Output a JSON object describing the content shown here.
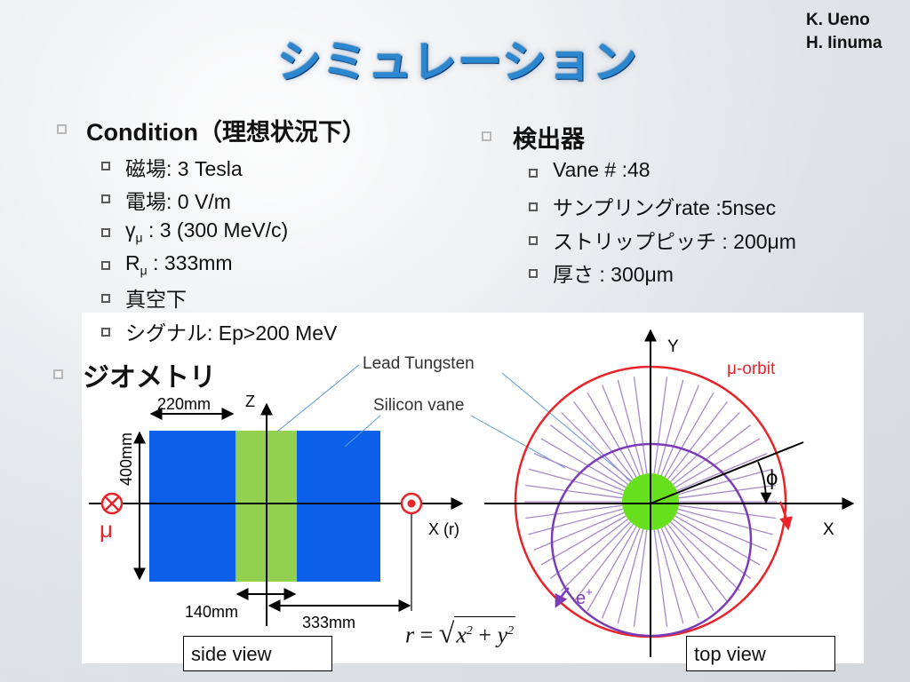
{
  "authors": [
    "K. Ueno",
    "H. Iinuma"
  ],
  "title": "シミュレーション",
  "condition": {
    "heading": "Condition",
    "heading_paren": "（理想状況下）",
    "items": [
      {
        "label": "磁場",
        "sep": ": ",
        "value": "3 Tesla"
      },
      {
        "label": "電場",
        "sep": ": ",
        "value": "0 V/m"
      },
      {
        "label": "γ",
        "sub": "μ",
        "value": " : 3 (300 MeV/c)"
      },
      {
        "label": "R",
        "sub": "μ",
        "value": " : 333mm"
      },
      {
        "label": "真空下",
        "sep": "",
        "value": ""
      },
      {
        "label": "シグナル",
        "sep": ": ",
        "value": "Ep>200 MeV"
      }
    ]
  },
  "detector": {
    "heading": "検出器",
    "items": [
      {
        "label": "Vane # :48"
      },
      {
        "label": "サンプリング",
        "value": "rate :5nsec"
      },
      {
        "label": "ストリップピッチ",
        "value": " : 200μm"
      },
      {
        "label": "厚さ",
        "value": " : 300μm"
      }
    ]
  },
  "geometry": {
    "heading": "ジオメトリ",
    "side": {
      "dim_220": "220mm",
      "dim_400": "400mm",
      "dim_140": "140mm",
      "dim_333": "333mm",
      "axis_z": "Z",
      "axis_x": "X (r)",
      "mu_label": "μ",
      "lead_label": "Lead Tungsten",
      "silicon_label": "Silicon vane"
    },
    "top": {
      "axis_y": "Y",
      "axis_x": "X",
      "orbit_label": "μ-orbit",
      "phi_label": "ϕ",
      "positron_label": "e",
      "positron_sup": "+"
    },
    "formula": {
      "lhs": "r",
      "eq": " = ",
      "x": "x",
      "plus": " + ",
      "y": "y",
      "pow": "2"
    },
    "side_view_label": "side view",
    "top_view_label": "top view"
  },
  "colors": {
    "title": "#2a87d0",
    "detector_blue": "#0b5fe8",
    "tungsten_green": "#92d050",
    "core_green": "#66e01c",
    "orbit_red": "#e8242a",
    "positron_purple": "#7c3cb8"
  }
}
